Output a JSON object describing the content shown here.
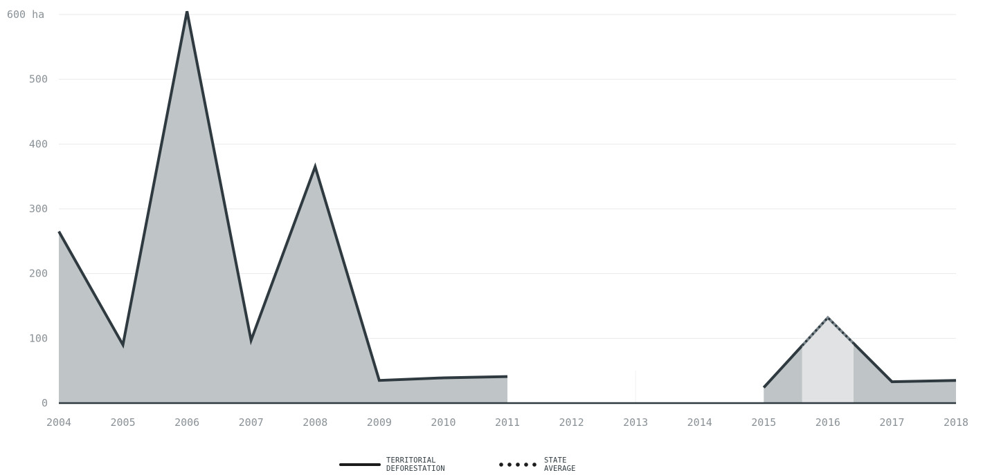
{
  "chart_data": {
    "type": "area",
    "x": [
      2004,
      2005,
      2006,
      2007,
      2008,
      2009,
      2010,
      2011,
      2012,
      2013,
      2014,
      2015,
      2016,
      2017,
      2018
    ],
    "series": [
      {
        "name": "TERRITORIAL DEFORESTATION",
        "style": "solid",
        "segments": [
          {
            "x": [
              2004,
              2005,
              2006,
              2007,
              2008,
              2009,
              2010,
              2011
            ],
            "y": [
              265,
              90,
              605,
              97,
              365,
              35,
              39,
              41
            ]
          },
          {
            "x": [
              2015,
              2016,
              2017,
              2018
            ],
            "y": [
              24,
              132,
              33,
              35
            ]
          }
        ]
      },
      {
        "name": "STATE AVERAGE",
        "style": "dotted"
      }
    ],
    "highlight_range": [
      2015.6,
      2016.4
    ],
    "ylim": [
      0,
      600
    ],
    "yticks": [
      0,
      100,
      200,
      300,
      400,
      500,
      600
    ],
    "ytick_labels": [
      "0",
      "100",
      "200",
      "300",
      "400",
      "500",
      "600 ha"
    ],
    "xtick_labels": [
      "2004",
      "2005",
      "2006",
      "2007",
      "2008",
      "2009",
      "2010",
      "2011",
      "2012",
      "2013",
      "2014",
      "2015",
      "2016",
      "2017",
      "2018"
    ],
    "grid": true,
    "legend_position": "bottom-center",
    "colors": {
      "line": "#2f3a40",
      "fill": "#bfc5c7",
      "highlight_fill": "#e0e2e3",
      "highlight_line": "#7f8a90",
      "grid": "#e8eaeb",
      "axis": "#2f3a40",
      "tick_text": "#8a9196"
    }
  },
  "legend": {
    "items": [
      {
        "label": "TERRITORIAL\nDEFORESTATION",
        "style": "solid"
      },
      {
        "label": "STATE\nAVERAGE",
        "style": "dotted"
      }
    ]
  }
}
